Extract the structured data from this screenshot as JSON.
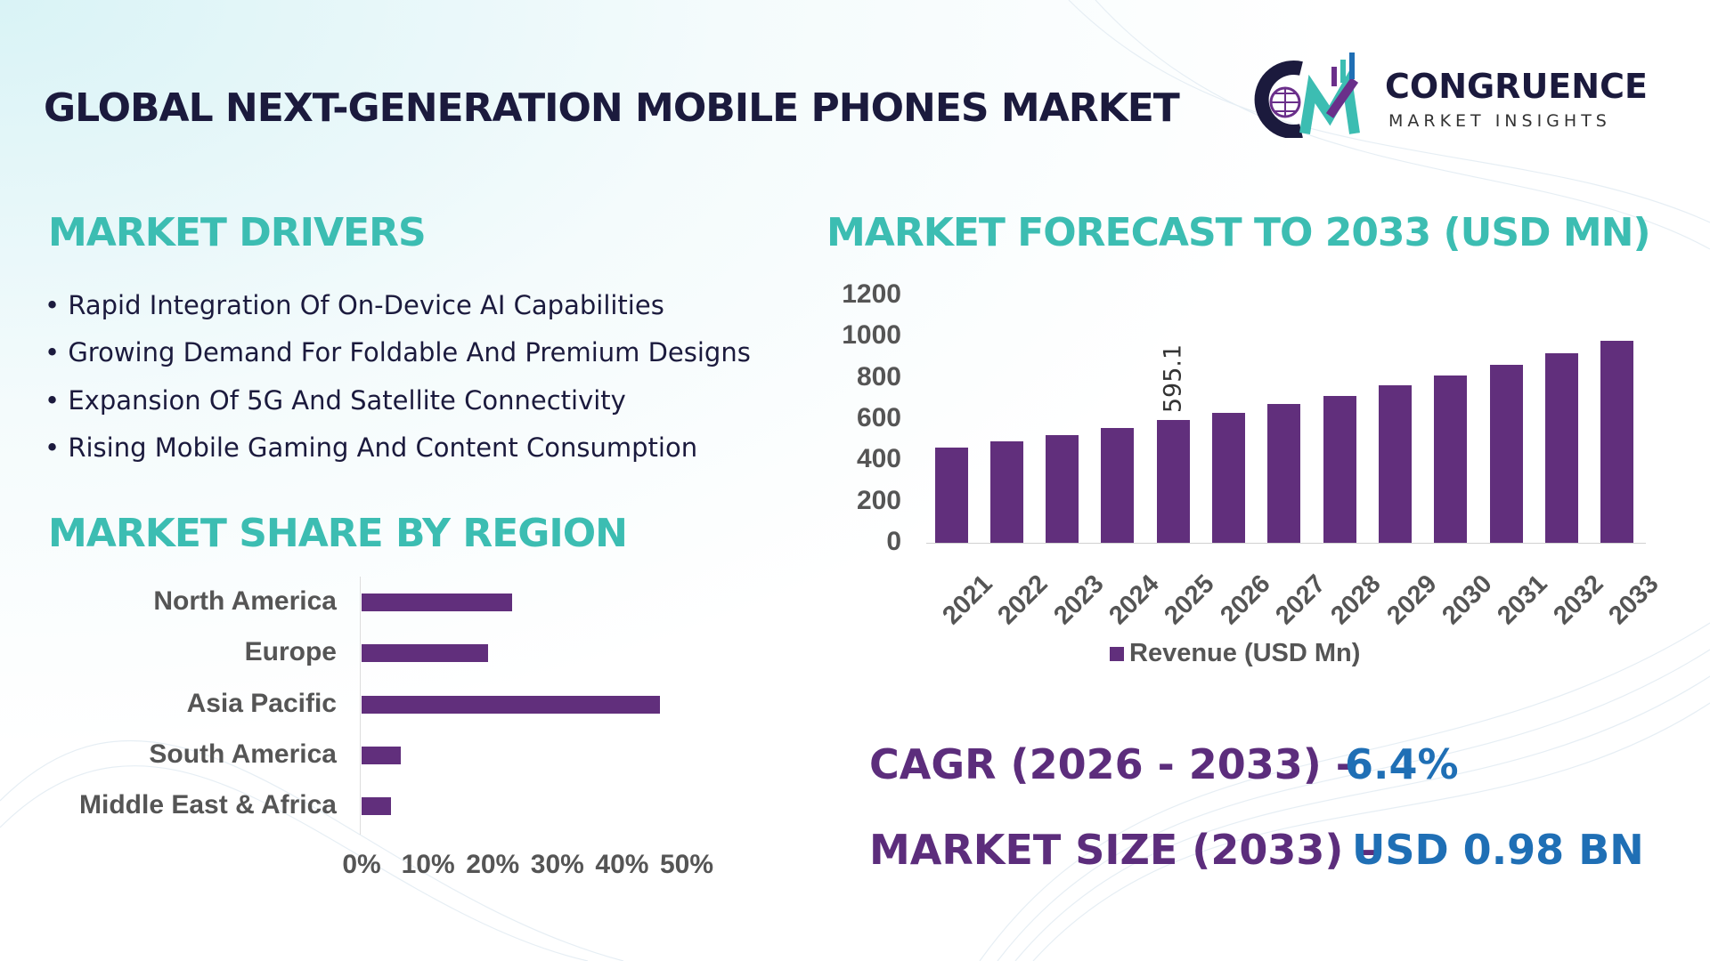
{
  "title": "GLOBAL NEXT-GENERATION MOBILE PHONES MARKET",
  "logo": {
    "name": "CONGRUENCE",
    "sub": "MARKET INSIGHTS",
    "letters": "CM"
  },
  "drivers": {
    "heading": "MARKET DRIVERS",
    "items": [
      "Rapid Integration Of On-Device AI Capabilities",
      "Growing Demand For Foldable And Premium Designs",
      "Expansion Of 5G And Satellite Connectivity",
      "Rising Mobile Gaming And Content Consumption"
    ]
  },
  "colors": {
    "bar": "#612f7c",
    "heading": "#3cbdb2",
    "stat_label": "#5c2d7c",
    "stat_value": "#1f6fb5"
  },
  "chart_data": [
    {
      "type": "bar",
      "orientation": "horizontal",
      "title": "MARKET SHARE BY REGION",
      "categories": [
        "North America",
        "Europe",
        "Asia Pacific",
        "South America",
        "Middle East & Africa"
      ],
      "values": [
        23.3,
        19.6,
        46.2,
        6.0,
        4.6
      ],
      "xticks": [
        "0%",
        "10%",
        "20%",
        "30%",
        "40%",
        "50%"
      ],
      "xlim": [
        0,
        50
      ]
    },
    {
      "type": "bar",
      "title": "MARKET FORECAST TO 2033 (USD MN)",
      "categories": [
        "2021",
        "2022",
        "2023",
        "2024",
        "2025",
        "2026",
        "2027",
        "2028",
        "2029",
        "2030",
        "2031",
        "2032",
        "2033"
      ],
      "series": [
        {
          "name": "Revenue (USD Mn)",
          "values": [
            460,
            492,
            524,
            556,
            595.1,
            630,
            672,
            714,
            762,
            810,
            862,
            921,
            979
          ]
        }
      ],
      "data_labels": [
        {
          "category": "2025",
          "text": "595.1"
        }
      ],
      "yticks": [
        "0",
        "200",
        "400",
        "600",
        "800",
        "1000",
        "1200"
      ],
      "ylim": [
        0,
        1200
      ],
      "legend": "bottom"
    }
  ],
  "stats": {
    "cagr_label": "CAGR (2026 - 2033) -",
    "cagr_value": "6.4%",
    "size_label": "MARKET SIZE (2033) –",
    "size_value": "USD 0.98 BN"
  }
}
